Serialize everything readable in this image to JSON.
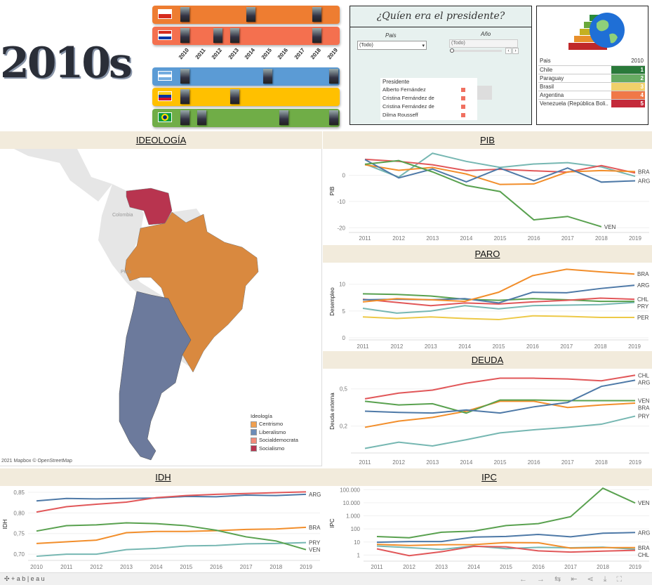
{
  "header": {
    "logo_text": "2010s",
    "years": [
      "2010",
      "2011",
      "2012",
      "2013",
      "2014",
      "2015",
      "2016",
      "2017",
      "2018",
      "2019"
    ],
    "timelines": [
      {
        "country": "Chile",
        "color": "#ee7d31",
        "presidents_at": [
          2010,
          2014,
          2018
        ]
      },
      {
        "country": "Paraguay",
        "color": "#f4704f",
        "presidents_at": [
          2010,
          2012,
          2013,
          2018
        ]
      },
      {
        "country": "Argentina",
        "color": "#5b9bd5",
        "presidents_at": [
          2010,
          2015,
          2019
        ]
      },
      {
        "country": "Venezuela",
        "color": "#ffc000",
        "presidents_at": [
          2010,
          2013
        ]
      },
      {
        "country": "Brasil",
        "color": "#70ad47",
        "presidents_at": [
          2010,
          2011,
          2016,
          2019
        ]
      }
    ]
  },
  "filter_panel": {
    "title": "¿Quíen era el presidente?",
    "pais_label": "Pais",
    "pais_value": "(Todo)",
    "anio_label": "Año",
    "anio_value": "(Todo)",
    "presidente_header": "Presidente",
    "presidentes": [
      "Alberto Fernández",
      "Cristina Fernández de",
      "Cristina Fernández de",
      "Dilma Rousseff"
    ],
    "marker_color": "#f07060"
  },
  "ranking": {
    "col_country": "Pais",
    "col_year": "2010",
    "rows": [
      {
        "country": "Chile",
        "rank": "1",
        "color": "#2a7a3a"
      },
      {
        "country": "Paraguay",
        "rank": "2",
        "color": "#67ab62"
      },
      {
        "country": "Brasil",
        "rank": "3",
        "color": "#f1d06a"
      },
      {
        "country": "Argentina",
        "rank": "4",
        "color": "#f07848"
      },
      {
        "country": "Venezuela (República Boli..",
        "rank": "5",
        "color": "#c42a3a"
      }
    ]
  },
  "map": {
    "title": "IDEOLOGÍA",
    "labels": [
      "Colombia",
      "Perú"
    ],
    "attribution": "2021 Mapbox © OpenStreetMap",
    "legend_title": "Ideología",
    "legend": [
      {
        "label": "Centrismo",
        "color": "#f0a050"
      },
      {
        "label": "Liberalismo",
        "color": "#6c8cb8"
      },
      {
        "label": "Socialdemocrata",
        "color": "#f28a78"
      },
      {
        "label": "Socialismo",
        "color": "#b8344f"
      }
    ]
  },
  "colors": {
    "ARG": "#4e79a7",
    "BRA": "#f28e2b",
    "CHL": "#e15759",
    "PRY": "#76b7b2",
    "VEN": "#59a14f",
    "PER": "#edc948"
  },
  "chart_data": [
    {
      "id": "pib",
      "title": "PIB",
      "type": "line",
      "ylabel": "PIB",
      "x": [
        2011,
        2012,
        2013,
        2014,
        2015,
        2016,
        2017,
        2018,
        2019
      ],
      "ylim": [
        -21,
        9
      ],
      "yticks": [
        0,
        -10,
        -20
      ],
      "ytick_labels": [
        "0",
        "-10",
        "-20"
      ],
      "series": [
        {
          "name": "PRY",
          "values": [
            4.3,
            -0.7,
            8.4,
            5.3,
            3,
            4.3,
            4.8,
            3.2,
            -0.4
          ]
        },
        {
          "name": "CHL",
          "values": [
            6.1,
            5.3,
            4,
            1.8,
            2.3,
            1.7,
            1.2,
            3.7,
            0.9
          ]
        },
        {
          "name": "BRA",
          "values": [
            4,
            1.9,
            3,
            0.5,
            -3.5,
            -3.3,
            1.3,
            1.8,
            1.4
          ],
          "label": "BRA"
        },
        {
          "name": "ARG",
          "values": [
            6,
            -1,
            2.4,
            -2.5,
            2.7,
            -2.1,
            2.8,
            -2.6,
            -2.1
          ],
          "label": "ARG"
        },
        {
          "name": "VEN",
          "values": [
            4.2,
            5.6,
            1.3,
            -3.9,
            -6.2,
            -17,
            -15.7,
            -19.6,
            null
          ],
          "label": "VEN"
        }
      ]
    },
    {
      "id": "paro",
      "title": "PARO",
      "type": "line",
      "ylabel": "Desempleo",
      "x": [
        2011,
        2012,
        2013,
        2014,
        2015,
        2016,
        2017,
        2018,
        2019
      ],
      "ylim": [
        0,
        13.5
      ],
      "yticks": [
        0,
        5,
        10
      ],
      "ytick_labels": [
        "0",
        "5",
        "10"
      ],
      "series": [
        {
          "name": "PER",
          "values": [
            3.9,
            3.6,
            3.9,
            3.6,
            3.4,
            4.1,
            4.0,
            3.8,
            3.8
          ],
          "label": "PER"
        },
        {
          "name": "PRY",
          "values": [
            5.5,
            4.6,
            5.0,
            6.0,
            5.4,
            6.0,
            6.1,
            6.2,
            6.6
          ],
          "label": "PRY"
        },
        {
          "name": "VEN",
          "values": [
            8.2,
            8.1,
            7.8,
            7.2,
            7.0,
            7.3,
            7.1,
            6.8,
            6.8
          ]
        },
        {
          "name": "CHL",
          "values": [
            7.2,
            6.6,
            6.0,
            6.5,
            6.3,
            6.7,
            7.0,
            7.4,
            7.2
          ],
          "label": "CHL"
        },
        {
          "name": "ARG",
          "values": [
            7.1,
            7.2,
            7.1,
            7.3,
            6.5,
            8.5,
            8.4,
            9.2,
            9.8
          ],
          "label": "ARG"
        },
        {
          "name": "BRA",
          "values": [
            6.7,
            7.3,
            7.1,
            6.8,
            8.5,
            11.6,
            12.8,
            12.3,
            11.9
          ],
          "label": "BRA"
        }
      ]
    },
    {
      "id": "deuda",
      "title": "DEUDA",
      "type": "line",
      "ylabel": "Deuda externa",
      "x": [
        2011,
        2012,
        2013,
        2014,
        2015,
        2016,
        2017,
        2018,
        2019
      ],
      "ylim": [
        0,
        0.64
      ],
      "yticks": [
        0.2,
        0.5
      ],
      "ytick_labels": [
        "0,2",
        "0,5"
      ],
      "series": [
        {
          "name": "PRY",
          "values": [
            0.02,
            0.07,
            0.04,
            0.09,
            0.145,
            0.17,
            0.19,
            0.215,
            0.28
          ],
          "label": "PRY"
        },
        {
          "name": "BRA",
          "values": [
            0.19,
            0.24,
            0.27,
            0.32,
            0.4,
            0.4,
            0.35,
            0.37,
            0.385
          ],
          "label": "BRA"
        },
        {
          "name": "VEN",
          "values": [
            0.4,
            0.37,
            0.38,
            0.305,
            0.41,
            0.41,
            0.405,
            0.405,
            0.405
          ],
          "label": "VEN"
        },
        {
          "name": "ARG",
          "values": [
            0.32,
            0.31,
            0.305,
            0.33,
            0.305,
            0.355,
            0.39,
            0.52,
            0.57
          ],
          "label": "ARG"
        },
        {
          "name": "CHL",
          "values": [
            0.42,
            0.466,
            0.49,
            0.546,
            0.586,
            0.586,
            0.58,
            0.565,
            0.61
          ],
          "label": "CHL"
        }
      ]
    },
    {
      "id": "idh",
      "title": "IDH",
      "type": "line",
      "ylabel": "IDH",
      "x": [
        2010,
        2011,
        2012,
        2013,
        2014,
        2015,
        2016,
        2017,
        2018,
        2019
      ],
      "ylim": [
        0.69,
        0.855
      ],
      "yticks": [
        0.7,
        0.75,
        0.8,
        0.85
      ],
      "ytick_labels": [
        "0,70",
        "0,75",
        "0,80",
        "0,85"
      ],
      "series": [
        {
          "name": "PRY",
          "values": [
            0.695,
            0.7,
            0.7,
            0.711,
            0.714,
            0.72,
            0.721,
            0.725,
            0.726,
            0.728
          ],
          "label": "PRY"
        },
        {
          "name": "BRA",
          "values": [
            0.726,
            0.73,
            0.734,
            0.752,
            0.755,
            0.755,
            0.757,
            0.76,
            0.761,
            0.765
          ],
          "label": "BRA"
        },
        {
          "name": "VEN",
          "values": [
            0.756,
            0.769,
            0.771,
            0.776,
            0.774,
            0.769,
            0.758,
            0.742,
            0.732,
            0.711
          ],
          "label": "VEN"
        },
        {
          "name": "ARG",
          "values": [
            0.829,
            0.835,
            0.834,
            0.835,
            0.836,
            0.84,
            0.839,
            0.843,
            0.842,
            0.845
          ],
          "label": "ARG"
        },
        {
          "name": "CHL",
          "values": [
            0.802,
            0.815,
            0.821,
            0.826,
            0.837,
            0.842,
            0.845,
            0.847,
            0.849,
            0.851
          ]
        }
      ]
    },
    {
      "id": "ipc",
      "title": "IPC",
      "type": "line",
      "ylabel": "IPC",
      "scale": "log",
      "x": [
        2011,
        2012,
        2013,
        2014,
        2015,
        2016,
        2017,
        2018,
        2019
      ],
      "ylim": [
        0.5,
        150000
      ],
      "yticks": [
        1,
        10,
        100,
        1000,
        10000,
        100000
      ],
      "ytick_labels": [
        "1",
        "10",
        "100",
        "1.000",
        "10.000",
        "100.000"
      ],
      "series": [
        {
          "name": "PRY",
          "values": [
            4.9,
            3.7,
            2.7,
            5.0,
            3.1,
            3.9,
            3.6,
            4.0,
            2.8
          ]
        },
        {
          "name": "CHL",
          "values": [
            3,
            0.9,
            1.8,
            4.6,
            4.3,
            2.1,
            1.7,
            2.0,
            2.3
          ],
          "label": "CHL"
        },
        {
          "name": "BRA",
          "values": [
            6.6,
            5.4,
            6.2,
            6.3,
            9,
            8.7,
            3.4,
            3.7,
            3.7
          ],
          "label": "BRA"
        },
        {
          "name": "ARG",
          "values": [
            9.5,
            10.8,
            10.9,
            23.9,
            26.5,
            38,
            25,
            47,
            53
          ],
          "label": "ARG"
        },
        {
          "name": "VEN",
          "values": [
            26,
            21,
            56,
            68,
            180,
            255,
            860,
            130000,
            9600
          ],
          "label": "VEN"
        }
      ]
    }
  ],
  "footer": {
    "brand": "+ a b | e a u"
  }
}
